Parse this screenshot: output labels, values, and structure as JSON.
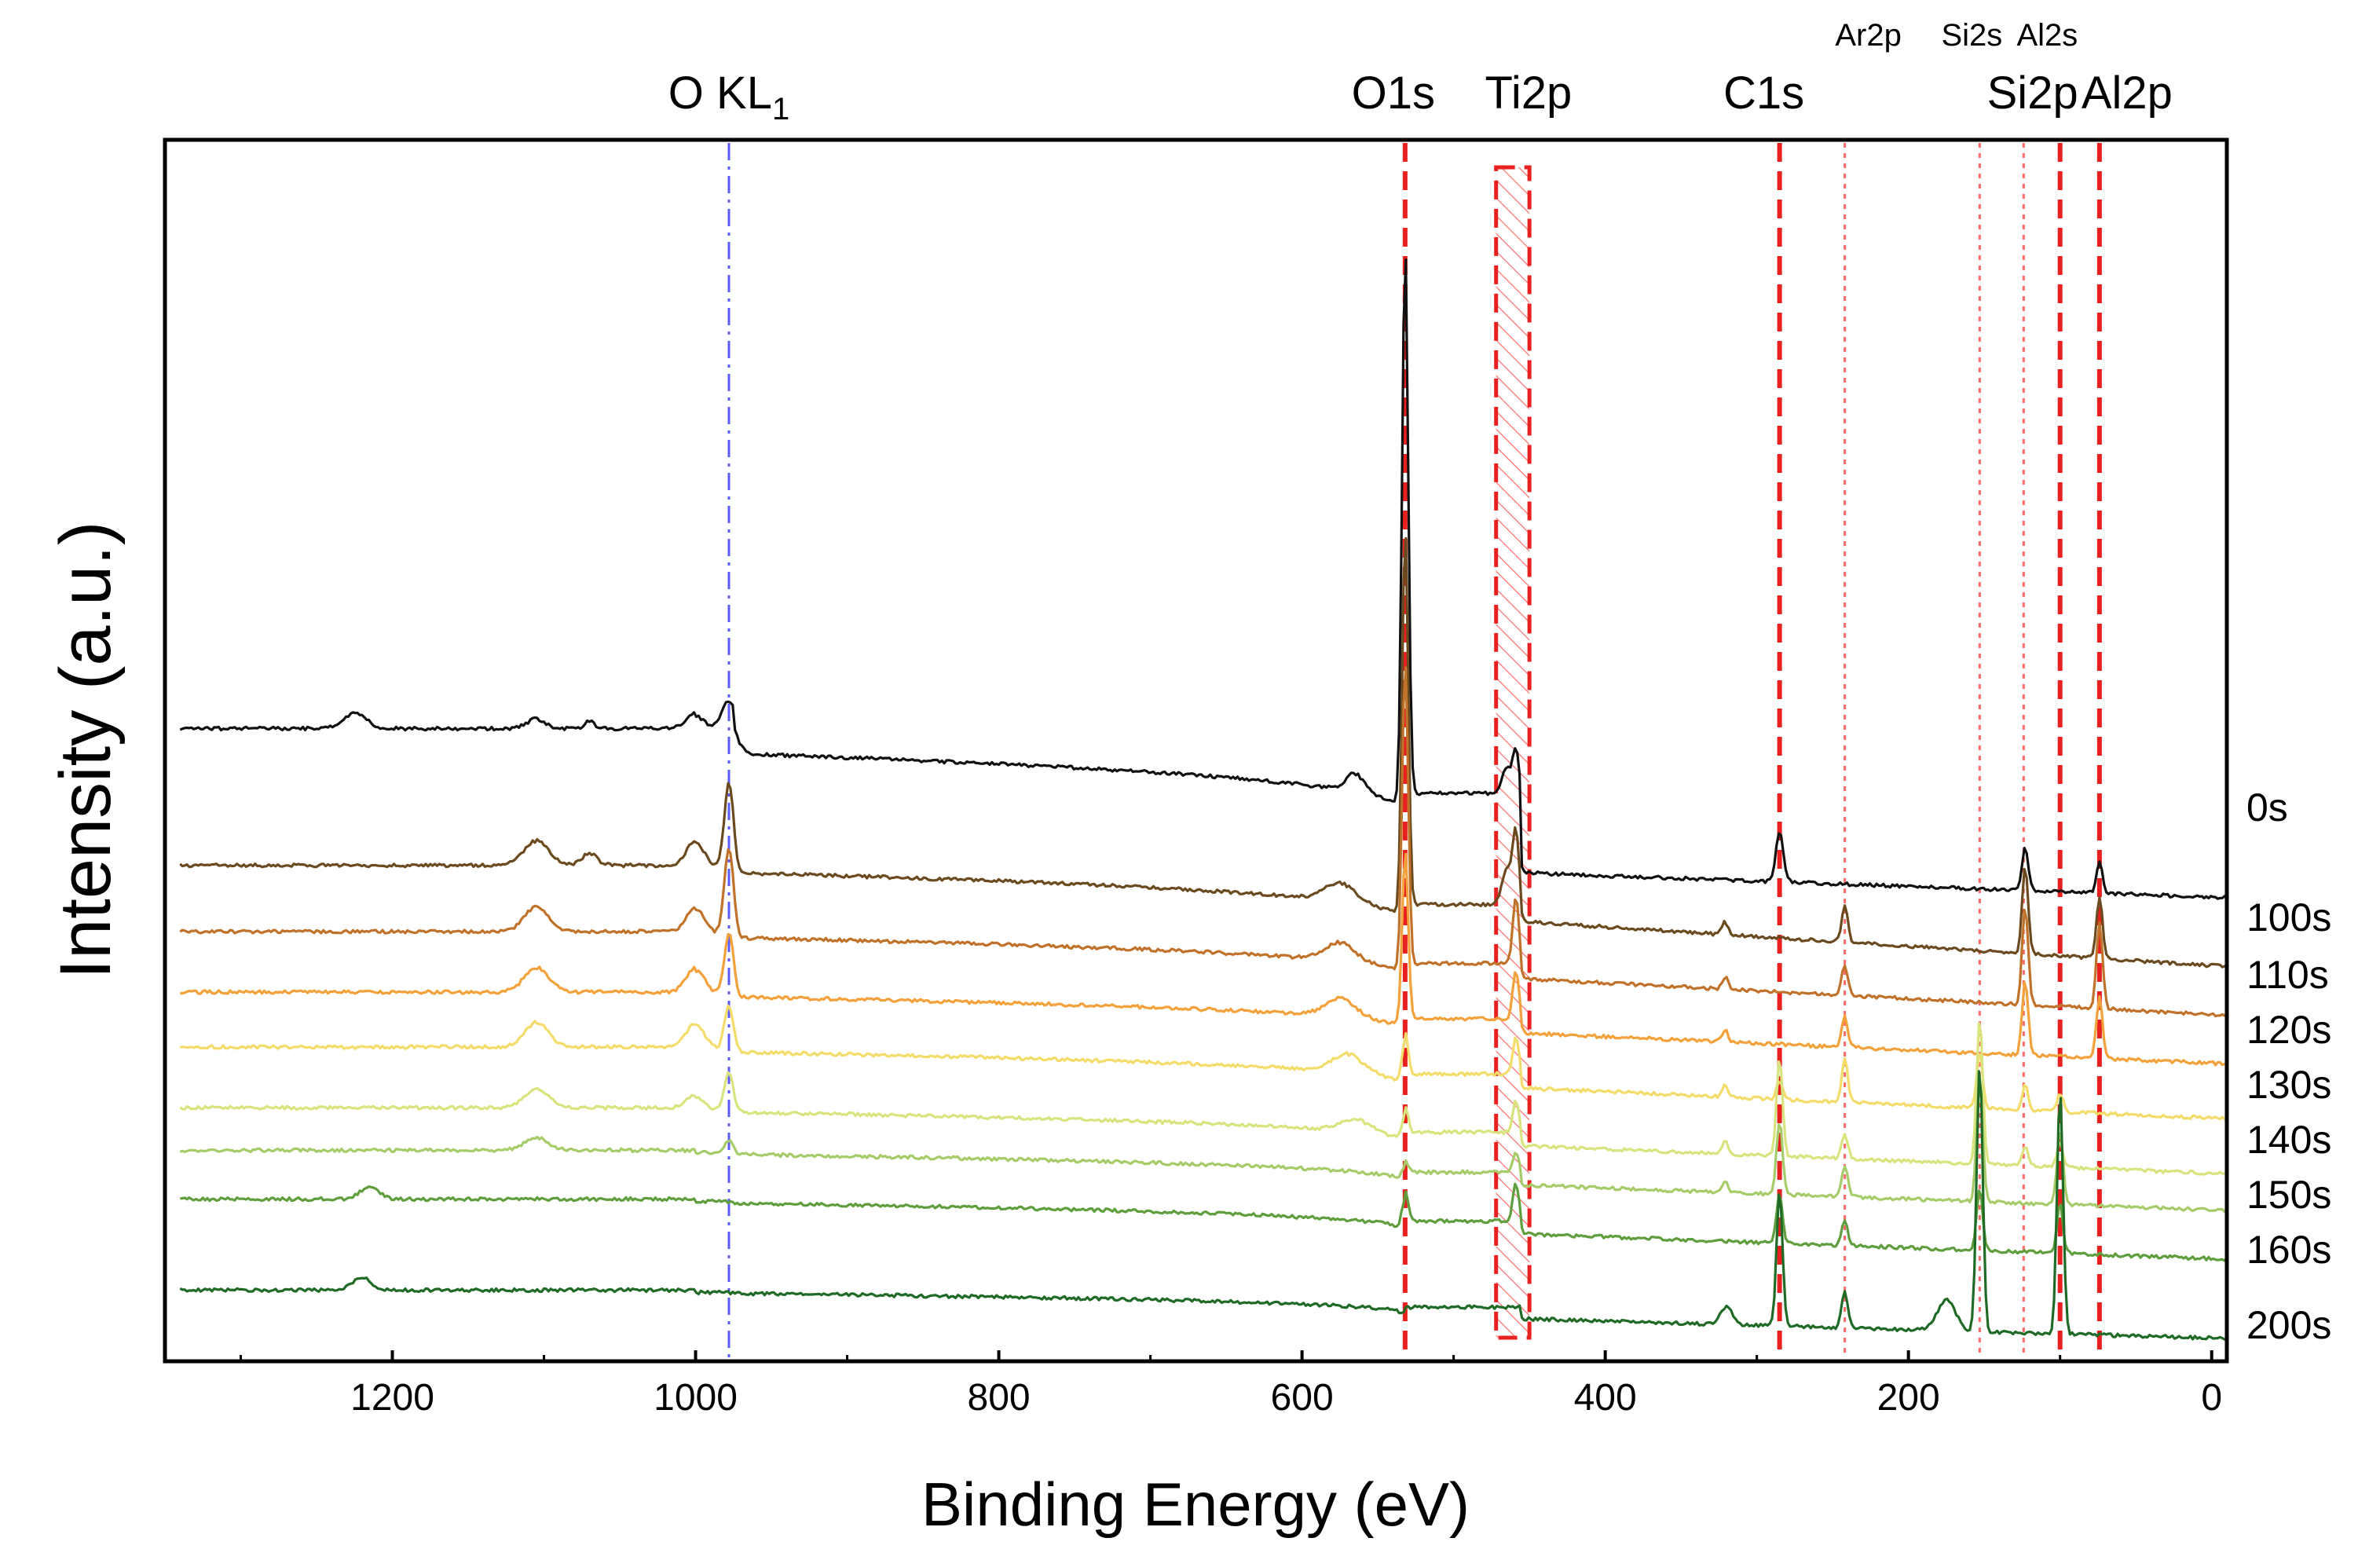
{
  "chart_data": {
    "type": "line",
    "title": "",
    "xlabel": "Binding Energy (eV)",
    "ylabel": "Intensity (a.u.)",
    "xlim": [
      1350,
      -10
    ],
    "x_direction": "reversed",
    "ylim": [
      0,
      100
    ],
    "y_ticks_shown": false,
    "x_ticks": [
      {
        "value": 1200,
        "label": "1200"
      },
      {
        "value": 1000,
        "label": "1000"
      },
      {
        "value": 800,
        "label": "800"
      },
      {
        "value": 600,
        "label": "600"
      },
      {
        "value": 400,
        "label": "400"
      },
      {
        "value": 200,
        "label": "200"
      },
      {
        "value": 0,
        "label": "0"
      }
    ],
    "series": [
      {
        "name": "0s",
        "label": "0s",
        "color": "#111111",
        "baseline": 51.0,
        "offset": 41.0,
        "peaks": [
          {
            "x": 1225,
            "h": 1.2,
            "w": 8
          },
          {
            "x": 1105,
            "h": 0.8,
            "w": 6
          },
          {
            "x": 1070,
            "h": 0.6,
            "w": 3
          },
          {
            "x": 1000,
            "h": 1.2,
            "w": 6
          },
          {
            "x": 978,
            "h": 2.5,
            "w": 5
          },
          {
            "x": 565,
            "h": 1.5,
            "w": 6
          },
          {
            "x": 532,
            "h": 45.0,
            "w": 2.0
          },
          {
            "x": 465,
            "h": 2.0,
            "w": 3
          },
          {
            "x": 459,
            "h": 3.5,
            "w": 2
          },
          {
            "x": 285,
            "h": 4.0,
            "w": 2.5
          },
          {
            "x": 123,
            "h": 3.5,
            "w": 2.0
          },
          {
            "x": 74,
            "h": 2.5,
            "w": 2
          }
        ]
      },
      {
        "name": "100s",
        "label": "100s",
        "color": "#6b4a1f",
        "baseline": 41.0,
        "offset": 33.0,
        "peaks": [
          {
            "x": 1105,
            "h": 2.0,
            "w": 8
          },
          {
            "x": 1070,
            "h": 1.0,
            "w": 5
          },
          {
            "x": 1000,
            "h": 2.0,
            "w": 6
          },
          {
            "x": 978,
            "h": 7.0,
            "w": 3
          },
          {
            "x": 575,
            "h": 1.5,
            "w": 10
          },
          {
            "x": 532,
            "h": 31.0,
            "w": 2.0
          },
          {
            "x": 465,
            "h": 3.0,
            "w": 3
          },
          {
            "x": 459,
            "h": 6.0,
            "w": 2
          },
          {
            "x": 321,
            "h": 1.0,
            "w": 2
          },
          {
            "x": 242,
            "h": 3.0,
            "w": 2
          },
          {
            "x": 123,
            "h": 7.0,
            "w": 2.0
          },
          {
            "x": 74,
            "h": 5.0,
            "w": 2
          }
        ]
      },
      {
        "name": "110s",
        "label": "110s",
        "color": "#c0722a",
        "baseline": 35.5,
        "offset": 29.0,
        "peaks": [
          {
            "x": 1105,
            "h": 2.0,
            "w": 8
          },
          {
            "x": 1000,
            "h": 2.0,
            "w": 6
          },
          {
            "x": 978,
            "h": 7.0,
            "w": 3
          },
          {
            "x": 575,
            "h": 1.5,
            "w": 10
          },
          {
            "x": 532,
            "h": 25.0,
            "w": 2.0
          },
          {
            "x": 459,
            "h": 5.5,
            "w": 2
          },
          {
            "x": 321,
            "h": 1.0,
            "w": 2
          },
          {
            "x": 242,
            "h": 2.5,
            "w": 2
          },
          {
            "x": 123,
            "h": 8.0,
            "w": 2.0
          },
          {
            "x": 74,
            "h": 7.0,
            "w": 2
          }
        ]
      },
      {
        "name": "120s",
        "label": "120s",
        "color": "#f3a13a",
        "baseline": 30.5,
        "offset": 25.0,
        "peaks": [
          {
            "x": 1105,
            "h": 2.0,
            "w": 8
          },
          {
            "x": 1000,
            "h": 2.0,
            "w": 6
          },
          {
            "x": 978,
            "h": 5.0,
            "w": 3
          },
          {
            "x": 575,
            "h": 1.5,
            "w": 10
          },
          {
            "x": 532,
            "h": 14.0,
            "w": 2.0
          },
          {
            "x": 459,
            "h": 4.0,
            "w": 2
          },
          {
            "x": 321,
            "h": 1.0,
            "w": 2
          },
          {
            "x": 242,
            "h": 2.5,
            "w": 2
          },
          {
            "x": 123,
            "h": 6.0,
            "w": 2.0
          },
          {
            "x": 74,
            "h": 5.0,
            "w": 2
          }
        ]
      },
      {
        "name": "130s",
        "label": "130s",
        "color": "#f4dc6a",
        "baseline": 26.0,
        "offset": 20.5,
        "peaks": [
          {
            "x": 1105,
            "h": 2.0,
            "w": 8
          },
          {
            "x": 1000,
            "h": 2.0,
            "w": 6
          },
          {
            "x": 978,
            "h": 3.5,
            "w": 3
          },
          {
            "x": 570,
            "h": 1.5,
            "w": 10
          },
          {
            "x": 532,
            "h": 3.5,
            "w": 2.0
          },
          {
            "x": 459,
            "h": 3.0,
            "w": 2
          },
          {
            "x": 321,
            "h": 1.0,
            "w": 2
          },
          {
            "x": 285,
            "h": 1.5,
            "w": 2
          },
          {
            "x": 242,
            "h": 3.5,
            "w": 2
          },
          {
            "x": 153,
            "h": 4.5,
            "w": 2
          },
          {
            "x": 123,
            "h": 2.0,
            "w": 2.0
          },
          {
            "x": 100,
            "h": 1.5,
            "w": 2
          }
        ]
      },
      {
        "name": "140s",
        "label": "140s",
        "color": "#d9e47e",
        "baseline": 21.0,
        "offset": 16.0,
        "peaks": [
          {
            "x": 1105,
            "h": 1.5,
            "w": 8
          },
          {
            "x": 1000,
            "h": 1.0,
            "w": 6
          },
          {
            "x": 978,
            "h": 3.0,
            "w": 3
          },
          {
            "x": 565,
            "h": 1.0,
            "w": 10
          },
          {
            "x": 532,
            "h": 2.0,
            "w": 2.0
          },
          {
            "x": 459,
            "h": 2.5,
            "w": 2
          },
          {
            "x": 321,
            "h": 1.0,
            "w": 2
          },
          {
            "x": 285,
            "h": 8.0,
            "w": 2
          },
          {
            "x": 242,
            "h": 2.0,
            "w": 2
          },
          {
            "x": 153,
            "h": 12.0,
            "w": 2
          },
          {
            "x": 123,
            "h": 1.5,
            "w": 2
          },
          {
            "x": 100,
            "h": 2.0,
            "w": 2
          }
        ]
      },
      {
        "name": "150s",
        "label": "150s",
        "color": "#a6cc6a",
        "baseline": 17.5,
        "offset": 13.0,
        "peaks": [
          {
            "x": 1105,
            "h": 1.0,
            "w": 8
          },
          {
            "x": 978,
            "h": 1.0,
            "w": 3
          },
          {
            "x": 532,
            "h": 1.0,
            "w": 2.0
          },
          {
            "x": 459,
            "h": 1.5,
            "w": 2
          },
          {
            "x": 321,
            "h": 1.0,
            "w": 2
          },
          {
            "x": 285,
            "h": 6.0,
            "w": 2
          },
          {
            "x": 242,
            "h": 2.5,
            "w": 2
          },
          {
            "x": 153,
            "h": 10.0,
            "w": 2
          },
          {
            "x": 100,
            "h": 6.0,
            "w": 2
          }
        ]
      },
      {
        "name": "160s",
        "label": "160s",
        "color": "#5e9e3c",
        "baseline": 13.5,
        "offset": 9.0,
        "peaks": [
          {
            "x": 1215,
            "h": 1.0,
            "w": 6
          },
          {
            "x": 532,
            "h": 2.5,
            "w": 2.0
          },
          {
            "x": 459,
            "h": 3.0,
            "w": 2
          },
          {
            "x": 285,
            "h": 4.0,
            "w": 2
          },
          {
            "x": 242,
            "h": 2.0,
            "w": 2
          },
          {
            "x": 153,
            "h": 5.0,
            "w": 2
          },
          {
            "x": 100,
            "h": 4.0,
            "w": 2
          }
        ]
      },
      {
        "name": "200s",
        "label": "200s",
        "color": "#1f6b26",
        "baseline": 6.0,
        "offset": 2.5,
        "peaks": [
          {
            "x": 1220,
            "h": 1.0,
            "w": 6
          },
          {
            "x": 320,
            "h": 1.5,
            "w": 4
          },
          {
            "x": 285,
            "h": 11.0,
            "w": 2
          },
          {
            "x": 242,
            "h": 3.0,
            "w": 2
          },
          {
            "x": 175,
            "h": 2.5,
            "w": 6
          },
          {
            "x": 153,
            "h": 22.0,
            "w": 2
          },
          {
            "x": 100,
            "h": 20.0,
            "w": 2
          }
        ]
      }
    ],
    "reference_lines": [
      {
        "x": 978,
        "style": "dash-dot",
        "color": "#5b5bff",
        "label": "O KL",
        "label_sub": "1"
      },
      {
        "x": 532,
        "style": "dashed",
        "color": "#e82020",
        "label": "O1s"
      },
      {
        "x": 285,
        "style": "dashed",
        "color": "#e82020",
        "label": "C1s"
      },
      {
        "x": 242,
        "style": "dotted",
        "color": "#ff6a6a",
        "label": "Ar2p"
      },
      {
        "x": 153,
        "style": "dotted",
        "color": "#ff6a6a",
        "label": "Si2s"
      },
      {
        "x": 124,
        "style": "dotted",
        "color": "#ff6a6a",
        "label": "Al2s"
      },
      {
        "x": 100,
        "style": "dashed",
        "color": "#e82020",
        "label": "Si2p"
      },
      {
        "x": 74,
        "style": "dashed",
        "color": "#e82020",
        "label": "Al2p"
      }
    ],
    "highlight_region": {
      "x_from": 472,
      "x_to": 450,
      "label": "Ti2p",
      "color": "#e82020"
    }
  }
}
